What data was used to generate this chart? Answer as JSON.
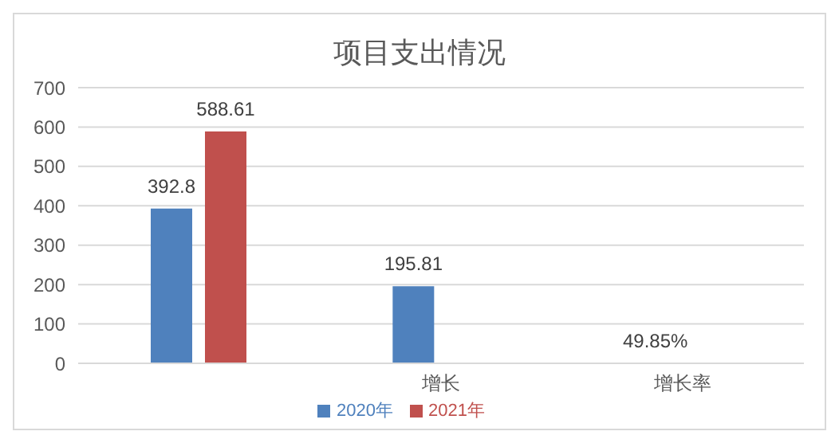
{
  "chart_data": {
    "type": "bar",
    "title": "项目支出情况",
    "categories": [
      null,
      "增长",
      "增长率"
    ],
    "series": [
      {
        "name": "2020年",
        "color": "#4f81bd",
        "values": [
          392.8,
          195.81,
          0.4985
        ],
        "value_labels": [
          "392.8",
          "195.81",
          "49.85%"
        ]
      },
      {
        "name": "2021年",
        "color": "#c0504d",
        "values": [
          588.61,
          null,
          null
        ],
        "value_labels": [
          "588.61",
          null,
          null
        ]
      }
    ],
    "ylim": [
      0,
      700
    ],
    "yticks": [
      0,
      100,
      200,
      300,
      400,
      500,
      600,
      700
    ],
    "grid": "y",
    "legend": "bottom"
  }
}
